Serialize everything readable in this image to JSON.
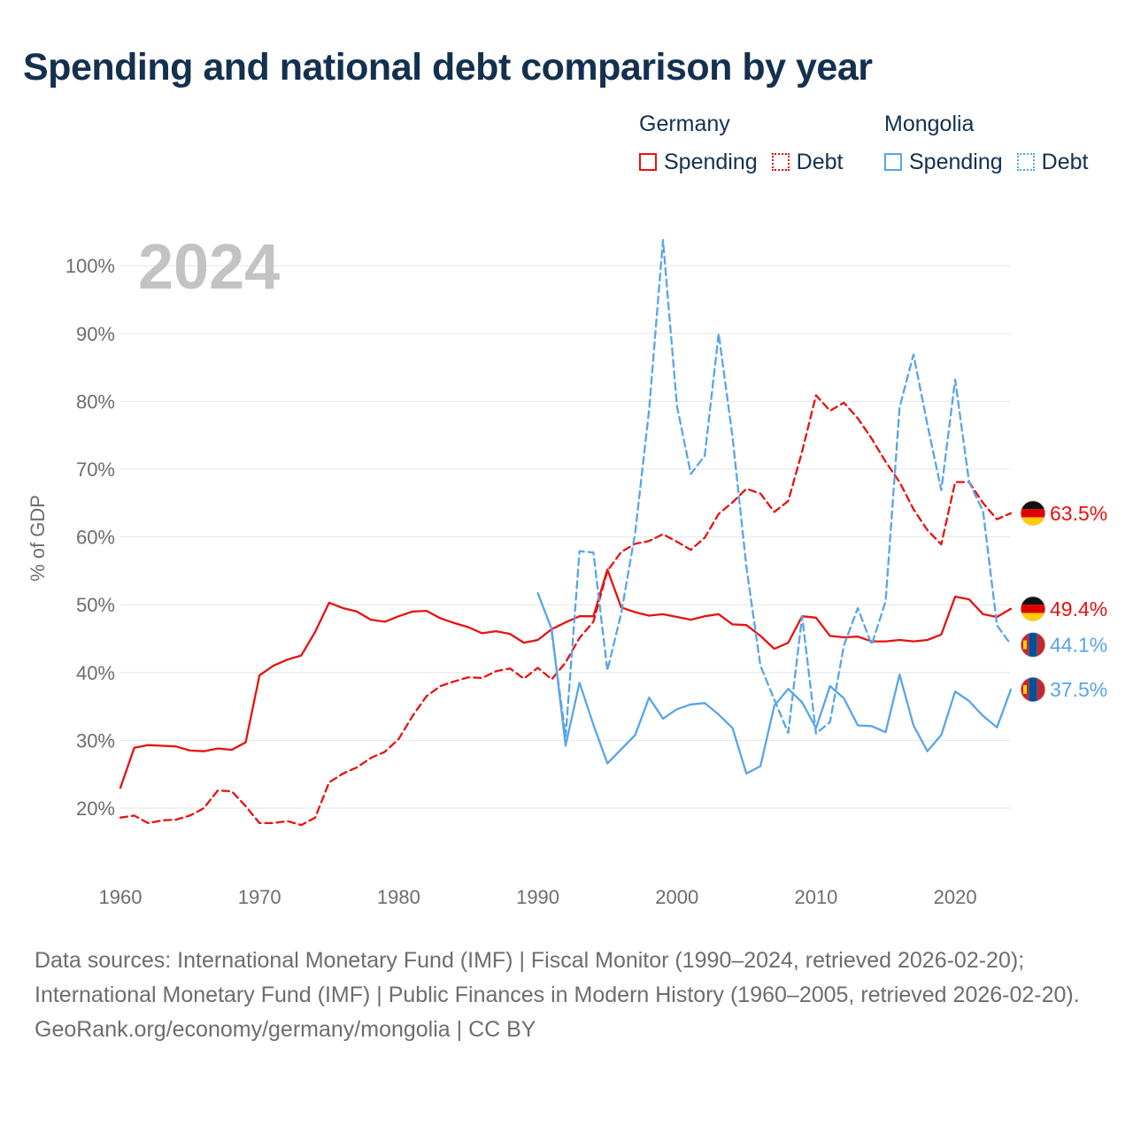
{
  "title": "Spending and national debt comparison by year",
  "legend": {
    "groups": [
      {
        "country": "Germany",
        "color": "#e8110f",
        "items": [
          {
            "label": "Spending",
            "style": "solid"
          },
          {
            "label": "Debt",
            "style": "dotted"
          }
        ]
      },
      {
        "country": "Mongolia",
        "color": "#58a5e8",
        "items": [
          {
            "label": "Spending",
            "style": "solid"
          },
          {
            "label": "Debt",
            "style": "dotted"
          }
        ]
      }
    ]
  },
  "chart_data": {
    "type": "line",
    "title": "Spending and national debt comparison by year",
    "year_label": "2024",
    "xlabel": "",
    "ylabel": "% of GDP",
    "xlim": [
      1960,
      2024
    ],
    "ylim": [
      15,
      104
    ],
    "grid": true,
    "x_ticks": [
      1960,
      1970,
      1980,
      1990,
      2000,
      2010,
      2020
    ],
    "y_ticks": [
      20,
      30,
      40,
      50,
      60,
      70,
      80,
      90,
      100
    ],
    "y_tick_labels": [
      "20%",
      "30%",
      "40%",
      "50%",
      "60%",
      "70%",
      "80%",
      "90%",
      "100%"
    ],
    "series": [
      {
        "name": "Germany Spending",
        "country": "Germany",
        "metric": "Spending",
        "color": "#e8110f",
        "dash": "solid",
        "end_label": "49.4%",
        "flag": "germany",
        "x": [
          1960,
          1961,
          1962,
          1963,
          1964,
          1965,
          1966,
          1967,
          1968,
          1969,
          1970,
          1971,
          1972,
          1973,
          1974,
          1975,
          1976,
          1977,
          1978,
          1979,
          1980,
          1981,
          1982,
          1983,
          1984,
          1985,
          1986,
          1987,
          1988,
          1989,
          1990,
          1991,
          1992,
          1993,
          1994,
          1995,
          1996,
          1997,
          1998,
          1999,
          2000,
          2001,
          2002,
          2003,
          2004,
          2005,
          2006,
          2007,
          2008,
          2009,
          2010,
          2011,
          2012,
          2013,
          2014,
          2015,
          2016,
          2017,
          2018,
          2019,
          2020,
          2021,
          2022,
          2023,
          2024
        ],
        "values": [
          23.0,
          28.9,
          29.3,
          29.2,
          29.1,
          28.5,
          28.4,
          28.8,
          28.6,
          29.7,
          39.6,
          41.0,
          41.9,
          42.5,
          46.0,
          50.3,
          49.5,
          49.0,
          47.8,
          47.5,
          48.3,
          49.0,
          49.1,
          48.0,
          47.3,
          46.7,
          45.8,
          46.1,
          45.7,
          44.4,
          44.8,
          46.4,
          47.4,
          48.3,
          48.3,
          55.2,
          49.6,
          48.9,
          48.4,
          48.6,
          48.2,
          47.8,
          48.3,
          48.6,
          47.1,
          47.0,
          45.4,
          43.5,
          44.4,
          48.3,
          48.1,
          45.4,
          45.2,
          45.3,
          44.6,
          44.6,
          44.8,
          44.6,
          44.8,
          45.6,
          51.2,
          50.8,
          48.6,
          48.2,
          49.4
        ]
      },
      {
        "name": "Germany Debt",
        "country": "Germany",
        "metric": "Debt",
        "color": "#e8110f",
        "dash": "dashed",
        "end_label": "63.5%",
        "flag": "germany",
        "x": [
          1960,
          1961,
          1962,
          1963,
          1964,
          1965,
          1966,
          1967,
          1968,
          1969,
          1970,
          1971,
          1972,
          1973,
          1974,
          1975,
          1976,
          1977,
          1978,
          1979,
          1980,
          1981,
          1982,
          1983,
          1984,
          1985,
          1986,
          1987,
          1988,
          1989,
          1990,
          1991,
          1992,
          1993,
          1994,
          1995,
          1996,
          1997,
          1998,
          1999,
          2000,
          2001,
          2002,
          2003,
          2004,
          2005,
          2006,
          2007,
          2008,
          2009,
          2010,
          2011,
          2012,
          2013,
          2014,
          2015,
          2016,
          2017,
          2018,
          2019,
          2020,
          2021,
          2022,
          2023,
          2024
        ],
        "values": [
          18.6,
          18.9,
          17.8,
          18.2,
          18.3,
          18.9,
          20.0,
          22.6,
          22.5,
          20.3,
          17.8,
          17.8,
          18.1,
          17.5,
          18.6,
          23.8,
          25.1,
          26.0,
          27.4,
          28.3,
          30.2,
          33.6,
          36.5,
          38.0,
          38.7,
          39.3,
          39.2,
          40.2,
          40.6,
          39.1,
          40.7,
          39.0,
          41.5,
          45.1,
          47.5,
          55.0,
          57.8,
          59.0,
          59.4,
          60.4,
          59.3,
          58.1,
          59.9,
          63.4,
          65.1,
          67.1,
          66.4,
          63.7,
          65.3,
          72.6,
          80.9,
          78.6,
          79.8,
          77.5,
          74.5,
          71.1,
          68.1,
          64.1,
          61.0,
          58.9,
          68.1,
          68.1,
          65.0,
          62.6,
          63.5
        ]
      },
      {
        "name": "Mongolia Spending",
        "country": "Mongolia",
        "metric": "Spending",
        "color": "#58a5e8",
        "dash": "solid",
        "end_label": "37.5%",
        "flag": "mongolia",
        "x": [
          1990,
          1991,
          1992,
          1993,
          1994,
          1995,
          1996,
          1997,
          1998,
          1999,
          2000,
          2001,
          2002,
          2003,
          2004,
          2005,
          2006,
          2007,
          2008,
          2009,
          2010,
          2011,
          2012,
          2013,
          2014,
          2015,
          2016,
          2017,
          2018,
          2019,
          2020,
          2021,
          2022,
          2023,
          2024
        ],
        "values": [
          51.7,
          46.4,
          29.2,
          38.5,
          32.3,
          26.6,
          28.7,
          30.8,
          36.3,
          33.2,
          34.6,
          35.3,
          35.5,
          33.8,
          31.8,
          25.1,
          26.2,
          35.1,
          37.6,
          35.6,
          31.8,
          38.0,
          36.2,
          32.2,
          32.1,
          31.2,
          39.7,
          32.2,
          28.4,
          30.8,
          37.2,
          35.8,
          33.6,
          31.9,
          37.5
        ]
      },
      {
        "name": "Mongolia Debt",
        "country": "Mongolia",
        "metric": "Debt",
        "color": "#58a5e8",
        "dash": "dashed",
        "end_label": "44.1%",
        "flag": "mongolia",
        "x": [
          1991,
          1992,
          1993,
          1994,
          1995,
          1996,
          1997,
          1998,
          1999,
          2000,
          2001,
          2002,
          2003,
          2004,
          2005,
          2006,
          2007,
          2008,
          2009,
          2010,
          2011,
          2012,
          2013,
          2014,
          2015,
          2016,
          2017,
          2018,
          2019,
          2020,
          2021,
          2022,
          2023,
          2024
        ],
        "values": [
          45.9,
          30.6,
          57.9,
          57.7,
          40.3,
          48.8,
          60.6,
          78.7,
          103.8,
          79.3,
          69.3,
          72.0,
          90.0,
          74.7,
          55.5,
          41.0,
          36.0,
          31.1,
          48.3,
          31.0,
          32.7,
          44.0,
          49.5,
          44.1,
          50.5,
          79.1,
          86.9,
          76.6,
          66.9,
          83.2,
          68.1,
          63.8,
          47.0,
          44.1
        ]
      }
    ]
  },
  "footer": {
    "sources": "Data sources: International Monetary Fund (IMF) | Fiscal Monitor (1990–2024, retrieved 2026-02-20); International Monetary Fund (IMF) | Public Finances in Modern History (1960–2005, retrieved 2026-02-20).",
    "credit": "GeoRank.org/economy/germany/mongolia | CC BY"
  }
}
